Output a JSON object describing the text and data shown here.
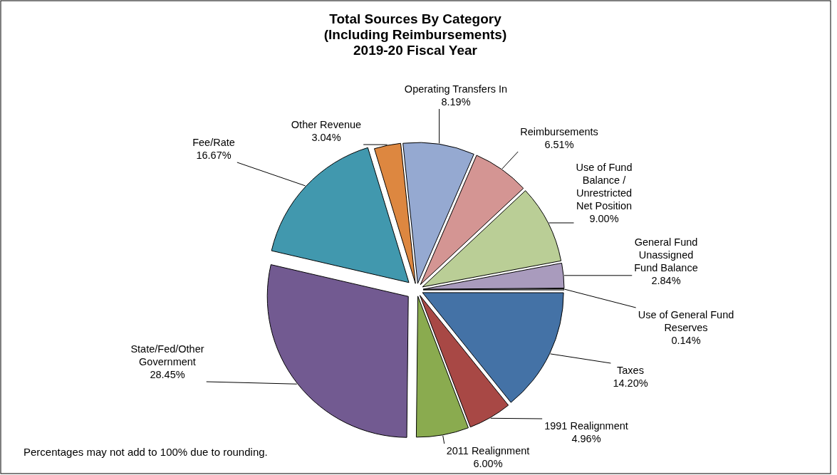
{
  "chart_data": {
    "type": "pie",
    "title": "Total Sources By Category\n(Including Reimbursements)\n2019-20 Fiscal Year",
    "categories": [
      "Operating Transfers In",
      "Reimbursements",
      "Use of Fund Balance / Unrestricted Net Position",
      "General Fund Unassigned Fund Balance",
      "Use of General Fund Reserves",
      "Taxes",
      "1991 Realignment",
      "2011 Realignment",
      "State/Fed/Other Government",
      "Fee/Rate",
      "Other Revenue"
    ],
    "values": [
      8.19,
      6.51,
      9.0,
      2.84,
      0.14,
      14.2,
      4.96,
      6.0,
      28.45,
      16.67,
      3.04
    ],
    "value_labels": [
      "8.19%",
      "6.51%",
      "9.00%",
      "2.84%",
      "0.14%",
      "14.20%",
      "4.96%",
      "6.00%",
      "28.45%",
      "16.67%",
      "3.04%"
    ],
    "colors": [
      "#95a9d1",
      "#d49593",
      "#bace96",
      "#a99bbd",
      "#c8c8c8",
      "#4472a6",
      "#a84845",
      "#8aab4f",
      "#725a91",
      "#4198ae",
      "#dd8740"
    ],
    "annotations": [
      "Percentages may not add to 100% due to rounding."
    ]
  }
}
